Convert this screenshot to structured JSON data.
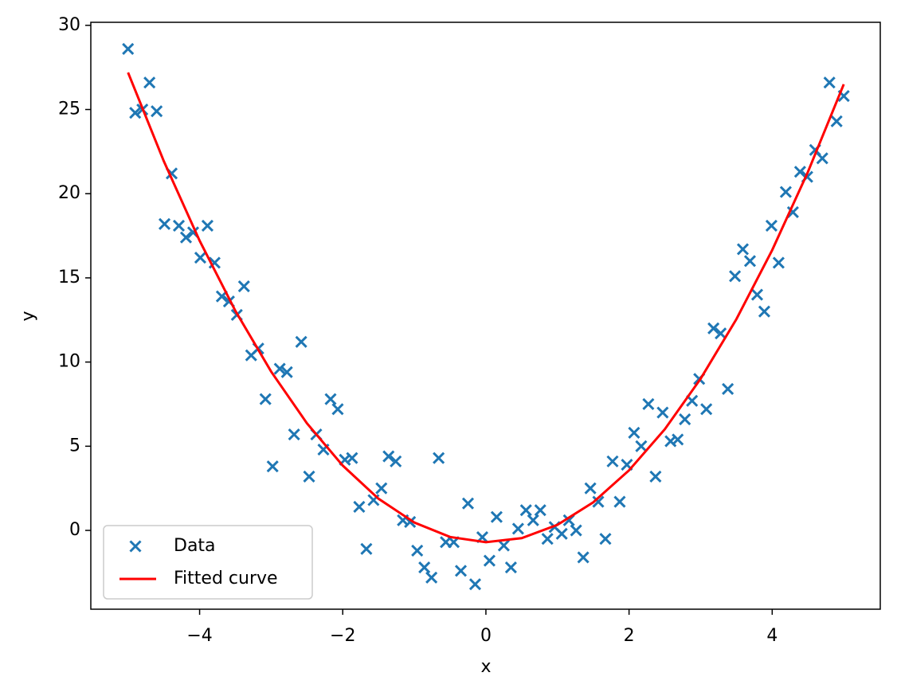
{
  "chart_data": {
    "type": "scatter",
    "xlabel": "x",
    "ylabel": "y",
    "xlim": [
      -5.52,
      5.51
    ],
    "ylim": [
      -4.68,
      30.18
    ],
    "xticks": [
      {
        "value": -4,
        "label": "−4"
      },
      {
        "value": -2,
        "label": "−2"
      },
      0,
      2,
      4
    ],
    "yticks": [
      0,
      5,
      10,
      15,
      20,
      25,
      30
    ],
    "legend": "lower left",
    "series": [
      {
        "name": "Data",
        "type": "scatter",
        "color": "#1f77b4",
        "x": [
          -5.0,
          -4.9,
          -4.8,
          -4.7,
          -4.6,
          -4.49,
          -4.39,
          -4.29,
          -4.19,
          -4.09,
          -3.99,
          -3.89,
          -3.79,
          -3.69,
          -3.59,
          -3.48,
          -3.38,
          -3.28,
          -3.18,
          -3.08,
          -2.98,
          -2.88,
          -2.78,
          -2.68,
          -2.58,
          -2.47,
          -2.37,
          -2.27,
          -2.17,
          -2.07,
          -1.97,
          -1.87,
          -1.77,
          -1.67,
          -1.57,
          -1.46,
          -1.36,
          -1.26,
          -1.16,
          -1.06,
          -0.96,
          -0.86,
          -0.76,
          -0.66,
          -0.56,
          -0.45,
          -0.35,
          -0.25,
          -0.15,
          -0.05,
          0.05,
          0.15,
          0.25,
          0.35,
          0.45,
          0.56,
          0.66,
          0.76,
          0.86,
          0.96,
          1.06,
          1.16,
          1.26,
          1.36,
          1.46,
          1.57,
          1.67,
          1.77,
          1.87,
          1.97,
          2.07,
          2.17,
          2.27,
          2.37,
          2.47,
          2.58,
          2.68,
          2.78,
          2.88,
          2.98,
          3.08,
          3.18,
          3.28,
          3.38,
          3.48,
          3.59,
          3.69,
          3.79,
          3.89,
          3.99,
          4.09,
          4.19,
          4.29,
          4.39,
          4.49,
          4.6,
          4.7,
          4.8,
          4.9,
          5.0
        ],
        "values": [
          28.6,
          24.8,
          25.0,
          26.6,
          24.9,
          18.2,
          21.2,
          18.1,
          17.4,
          17.7,
          16.2,
          18.1,
          15.9,
          13.9,
          13.6,
          12.8,
          14.5,
          10.4,
          10.8,
          7.8,
          3.8,
          9.6,
          9.4,
          5.7,
          11.2,
          3.2,
          5.7,
          4.8,
          7.8,
          7.2,
          4.2,
          4.3,
          1.4,
          -1.1,
          1.8,
          2.5,
          4.4,
          4.1,
          0.6,
          0.5,
          -1.2,
          -2.2,
          -2.8,
          4.3,
          -0.7,
          -0.7,
          -2.4,
          1.6,
          -3.2,
          -0.4,
          -1.8,
          0.8,
          -0.9,
          -2.2,
          0.1,
          1.2,
          0.6,
          1.2,
          -0.5,
          0.2,
          -0.2,
          0.6,
          0.0,
          -1.6,
          2.5,
          1.7,
          -0.5,
          4.1,
          1.7,
          3.9,
          5.8,
          5.0,
          7.5,
          3.2,
          7.0,
          5.3,
          5.4,
          6.6,
          7.7,
          9.0,
          7.2,
          12.0,
          11.7,
          8.4,
          15.1,
          16.7,
          16.0,
          14.0,
          13.0,
          18.1,
          15.9,
          20.1,
          18.9,
          21.3,
          21.0,
          22.6,
          22.1,
          26.6,
          24.3,
          25.8
        ]
      },
      {
        "name": "Fitted curve",
        "type": "line",
        "color": "#ff0000",
        "x": [
          -5,
          -4.5,
          -4,
          -3.5,
          -3,
          -2.5,
          -2,
          -1.5,
          -1,
          -0.5,
          0,
          0.5,
          1,
          1.5,
          2,
          2.5,
          3,
          3.5,
          4,
          4.5,
          5
        ],
        "values": [
          27.2,
          21.93,
          17.21,
          13.04,
          9.43,
          6.36,
          3.85,
          1.88,
          0.47,
          -0.39,
          -0.7,
          -0.46,
          0.33,
          1.67,
          3.57,
          6.01,
          9.01,
          12.55,
          16.65,
          21.3,
          26.5
        ]
      }
    ]
  }
}
